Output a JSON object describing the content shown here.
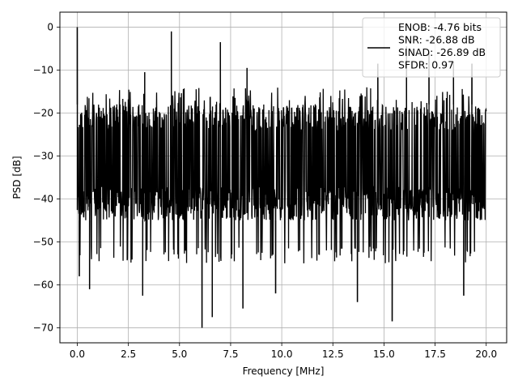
{
  "chart_data": {
    "type": "line",
    "title": "",
    "xlabel": "Frequency [MHz]",
    "ylabel": "PSD [dB]",
    "xlim": [
      -0.85,
      21.0
    ],
    "ylim": [
      -73.5,
      3.5
    ],
    "xticks": [
      0.0,
      2.5,
      5.0,
      7.5,
      10.0,
      12.5,
      15.0,
      17.5,
      20.0
    ],
    "xtick_labels": [
      "0.0",
      "2.5",
      "5.0",
      "7.5",
      "10.0",
      "12.5",
      "15.0",
      "17.5",
      "20.0"
    ],
    "yticks": [
      0,
      -10,
      -20,
      -30,
      -40,
      -50,
      -60,
      -70
    ],
    "ytick_labels": [
      "0",
      "−10",
      "−20",
      "−30",
      "−40",
      "−50",
      "−60",
      "−70"
    ],
    "grid": true,
    "legend_position": "top-right",
    "series": [
      {
        "name": "ENOB: -4.76 bits\nSNR: -26.88 dB\nSINAD: -26.89 dB\nSFDR: 0.97",
        "color": "#000000",
        "noise_floor": {
          "upper_envelope_db": -14,
          "dense_upper_db": -18,
          "dense_lower_db": -45,
          "lower_envelope_db": -55,
          "min_db": -70,
          "x_start_mhz": 0.0,
          "x_end_mhz": 20.0
        },
        "spurs": [
          {
            "x": 0.0,
            "y": 0.0
          },
          {
            "x": 4.6,
            "y": -1.0
          },
          {
            "x": 7.0,
            "y": -3.5
          },
          {
            "x": 8.3,
            "y": -9.5
          },
          {
            "x": 14.7,
            "y": -8.5
          },
          {
            "x": 16.1,
            "y": -4.5
          },
          {
            "x": 17.2,
            "y": -6.0
          },
          {
            "x": 18.4,
            "y": -8.0
          },
          {
            "x": 19.3,
            "y": -8.5
          },
          {
            "x": 3.3,
            "y": -10.5
          }
        ],
        "dips": [
          {
            "x": 6.1,
            "y": -70.0
          },
          {
            "x": 6.6,
            "y": -67.5
          },
          {
            "x": 15.4,
            "y": -68.5
          },
          {
            "x": 3.2,
            "y": -62.5
          },
          {
            "x": 0.6,
            "y": -61.0
          },
          {
            "x": 8.1,
            "y": -65.5
          },
          {
            "x": 9.7,
            "y": -62.0
          },
          {
            "x": 13.7,
            "y": -64.0
          },
          {
            "x": 18.9,
            "y": -62.5
          },
          {
            "x": 0.1,
            "y": -58.0
          }
        ]
      }
    ],
    "legend_lines": [
      "ENOB: -4.76 bits",
      "SNR: -26.88 dB",
      "SINAD: -26.89 dB",
      "SFDR: 0.97"
    ]
  }
}
